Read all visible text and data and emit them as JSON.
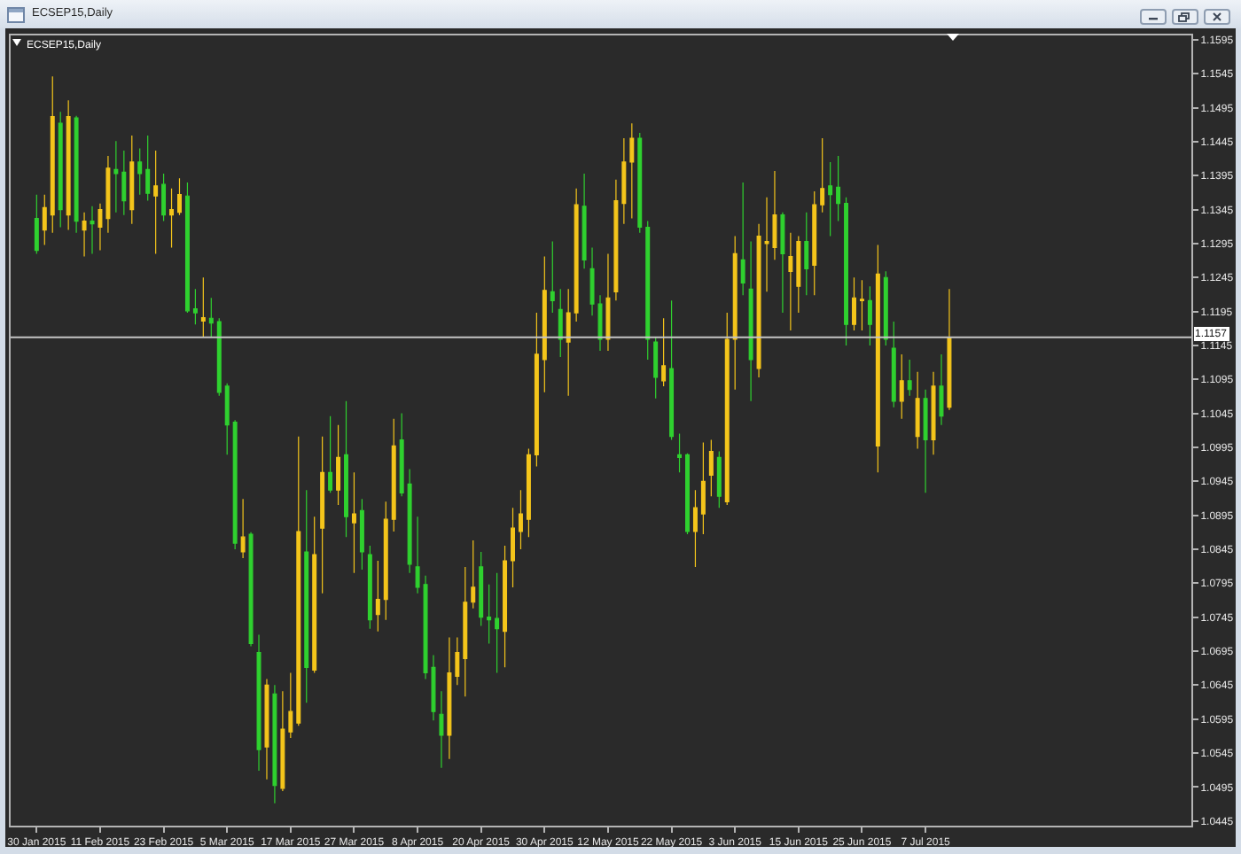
{
  "chart_data": {
    "type": "candlestick",
    "title": "ECSEP15,Daily",
    "annotations": [
      "ECSEP15,Daily"
    ],
    "categories": [
      "30 Jan 2015",
      null,
      null,
      null,
      null,
      null,
      null,
      null,
      "11 Feb 2015",
      null,
      null,
      null,
      null,
      null,
      null,
      null,
      "23 Feb 2015",
      null,
      null,
      null,
      null,
      null,
      null,
      null,
      "5 Mar 2015",
      null,
      null,
      null,
      null,
      null,
      null,
      null,
      "17 Mar 2015",
      null,
      null,
      null,
      null,
      null,
      null,
      null,
      "27 Mar 2015",
      null,
      null,
      null,
      null,
      null,
      null,
      null,
      "8 Apr 2015",
      null,
      null,
      null,
      null,
      null,
      null,
      null,
      "20 Apr 2015",
      null,
      null,
      null,
      null,
      null,
      null,
      null,
      "30 Apr 2015",
      null,
      null,
      null,
      null,
      null,
      null,
      null,
      "12 May 2015",
      null,
      null,
      null,
      null,
      null,
      null,
      null,
      "22 May 2015",
      null,
      null,
      null,
      null,
      null,
      null,
      null,
      "3 Jun 2015",
      null,
      null,
      null,
      null,
      null,
      null,
      null,
      "15 Jun 2015",
      null,
      null,
      null,
      null,
      null,
      null,
      null,
      "25 Jun 2015",
      null,
      null,
      null,
      null,
      null,
      null,
      null,
      "7 Jul 2015",
      null,
      null,
      null,
      null,
      null,
      null,
      null,
      null,
      null,
      null,
      null,
      null,
      null,
      null,
      null,
      null,
      null,
      null,
      null,
      null,
      null,
      null,
      null,
      null,
      null,
      null,
      null,
      null,
      null,
      null,
      null,
      null,
      null
    ],
    "ohlc": [
      [
        1.1332,
        1.1367,
        1.128,
        1.1285
      ],
      [
        1.1315,
        1.1367,
        1.1293,
        1.1348
      ],
      [
        1.1337,
        1.1541,
        1.1311,
        1.1482
      ],
      [
        1.1472,
        1.1489,
        1.1319,
        1.1345
      ],
      [
        1.1337,
        1.1506,
        1.1315,
        1.1482
      ],
      [
        1.148,
        1.1483,
        1.1311,
        1.1328
      ],
      [
        1.1315,
        1.1341,
        1.1276,
        1.1328
      ],
      [
        1.1328,
        1.135,
        1.128,
        1.1324
      ],
      [
        1.1319,
        1.1354,
        1.1285,
        1.1345
      ],
      [
        1.1332,
        1.1424,
        1.1311,
        1.1406
      ],
      [
        1.1404,
        1.1446,
        1.1341,
        1.1398
      ],
      [
        1.14,
        1.1432,
        1.1337,
        1.1358
      ],
      [
        1.1345,
        1.1454,
        1.1324,
        1.1415
      ],
      [
        1.1415,
        1.1435,
        1.1367,
        1.1398
      ],
      [
        1.1404,
        1.1454,
        1.1358,
        1.1369
      ],
      [
        1.1365,
        1.1432,
        1.128,
        1.138
      ],
      [
        1.1382,
        1.1398,
        1.1328,
        1.1337
      ],
      [
        1.1337,
        1.1376,
        1.1289,
        1.1345
      ],
      [
        1.1341,
        1.1391,
        1.1337,
        1.1367
      ],
      [
        1.1365,
        1.1385,
        1.1193,
        1.1196
      ],
      [
        1.1199,
        1.1228,
        1.1176,
        1.1193
      ],
      [
        1.1181,
        1.1245,
        1.1158,
        1.1186
      ],
      [
        1.1185,
        1.1215,
        1.1158,
        1.1178
      ],
      [
        1.118,
        1.1185,
        1.1071,
        1.1076
      ],
      [
        1.1085,
        1.1089,
        1.0984,
        1.1028
      ],
      [
        1.1032,
        1.1035,
        1.0845,
        1.0854
      ],
      [
        1.0841,
        1.0919,
        1.0832,
        1.0863
      ],
      [
        1.0867,
        1.087,
        1.0702,
        1.0706
      ],
      [
        1.0693,
        1.0719,
        1.0519,
        1.055
      ],
      [
        1.0554,
        1.0654,
        1.0506,
        1.0645
      ],
      [
        1.0632,
        1.0645,
        1.0471,
        1.0497
      ],
      [
        1.0493,
        1.0636,
        1.0489,
        1.058
      ],
      [
        1.0576,
        1.0663,
        1.0567,
        1.0606
      ],
      [
        1.0589,
        1.1011,
        1.0585,
        1.0871
      ],
      [
        1.0841,
        1.0932,
        1.0619,
        1.0671
      ],
      [
        1.0667,
        1.0893,
        1.0663,
        1.0837
      ],
      [
        1.0876,
        1.1011,
        1.078,
        1.0958
      ],
      [
        1.0958,
        1.1041,
        1.0928,
        1.0932
      ],
      [
        1.0932,
        1.1028,
        1.091,
        1.098
      ],
      [
        1.0984,
        1.1063,
        1.0863,
        1.0893
      ],
      [
        1.0884,
        1.0958,
        1.081,
        1.0897
      ],
      [
        1.0902,
        1.0919,
        1.0815,
        1.0841
      ],
      [
        1.0837,
        1.085,
        1.0728,
        1.0741
      ],
      [
        1.0749,
        1.0828,
        1.0724,
        1.0771
      ],
      [
        1.0771,
        1.0915,
        1.0741,
        1.0889
      ],
      [
        1.0889,
        1.1037,
        1.0871,
        1.0997
      ],
      [
        1.1006,
        1.1045,
        1.0923,
        1.0928
      ],
      [
        1.0941,
        1.0963,
        1.081,
        1.0823
      ],
      [
        1.0819,
        1.0893,
        1.078,
        1.0789
      ],
      [
        1.0793,
        1.0806,
        1.0654,
        1.0663
      ],
      [
        1.0671,
        1.0689,
        1.0593,
        1.0606
      ],
      [
        1.0602,
        1.0636,
        1.0523,
        1.0571
      ],
      [
        1.0571,
        1.0715,
        1.0536,
        1.0663
      ],
      [
        1.0658,
        1.0715,
        1.0645,
        1.0693
      ],
      [
        1.0684,
        1.0819,
        1.0628,
        1.0767
      ],
      [
        1.0767,
        1.0858,
        1.0758,
        1.0789
      ],
      [
        1.0819,
        1.0841,
        1.0732,
        1.0745
      ],
      [
        1.0745,
        1.0793,
        1.0706,
        1.0741
      ],
      [
        1.0743,
        1.081,
        1.0663,
        1.0728
      ],
      [
        1.0724,
        1.085,
        1.0671,
        1.0828
      ],
      [
        1.0828,
        1.0906,
        1.0789,
        1.0876
      ],
      [
        1.0871,
        1.0932,
        1.0845,
        1.0897
      ],
      [
        1.0889,
        1.0993,
        1.0863,
        1.0984
      ],
      [
        1.0984,
        1.1193,
        1.0967,
        1.1132
      ],
      [
        1.1124,
        1.1276,
        1.1076,
        1.1226
      ],
      [
        1.1224,
        1.1298,
        1.1193,
        1.1211
      ],
      [
        1.1198,
        1.1228,
        1.1128,
        1.1154
      ],
      [
        1.115,
        1.1228,
        1.1071,
        1.1193
      ],
      [
        1.1193,
        1.1376,
        1.118,
        1.1352
      ],
      [
        1.135,
        1.1398,
        1.1258,
        1.1271
      ],
      [
        1.1258,
        1.1289,
        1.1189,
        1.1206
      ],
      [
        1.1206,
        1.1219,
        1.1137,
        1.1154
      ],
      [
        1.1154,
        1.128,
        1.1137,
        1.1215
      ],
      [
        1.1224,
        1.1389,
        1.1211,
        1.1358
      ],
      [
        1.1354,
        1.145,
        1.1324,
        1.1415
      ],
      [
        1.1415,
        1.1472,
        1.1332,
        1.145
      ],
      [
        1.145,
        1.1458,
        1.1311,
        1.1319
      ],
      [
        1.1319,
        1.1328,
        1.1124,
        1.1154
      ],
      [
        1.115,
        1.1158,
        1.1067,
        1.1098
      ],
      [
        1.1093,
        1.1185,
        1.1085,
        1.1115
      ],
      [
        1.1111,
        1.1211,
        1.1006,
        1.1011
      ],
      [
        1.0984,
        1.1015,
        1.0958,
        1.098
      ],
      [
        1.0984,
        1.0986,
        1.0867,
        1.0871
      ],
      [
        1.0871,
        1.0932,
        1.0819,
        1.0906
      ],
      [
        1.0897,
        1.1002,
        1.0867,
        1.0945
      ],
      [
        1.0954,
        1.1006,
        1.0923,
        1.0989
      ],
      [
        1.098,
        1.0989,
        1.0906,
        1.0923
      ],
      [
        1.0915,
        1.1193,
        1.091,
        1.1154
      ],
      [
        1.1154,
        1.1306,
        1.108,
        1.128
      ],
      [
        1.1271,
        1.1385,
        1.1219,
        1.1237
      ],
      [
        1.1228,
        1.1298,
        1.1063,
        1.1124
      ],
      [
        1.1111,
        1.1324,
        1.1098,
        1.1306
      ],
      [
        1.1295,
        1.1363,
        1.1224,
        1.1298
      ],
      [
        1.1289,
        1.1402,
        1.1271,
        1.1337
      ],
      [
        1.1337,
        1.1341,
        1.1193,
        1.128
      ],
      [
        1.1254,
        1.1311,
        1.1167,
        1.1276
      ],
      [
        1.1232,
        1.1306,
        1.1193,
        1.1298
      ],
      [
        1.1298,
        1.1341,
        1.1219,
        1.1258
      ],
      [
        1.1263,
        1.1372,
        1.1219,
        1.1352
      ],
      [
        1.1352,
        1.145,
        1.1341,
        1.1376
      ],
      [
        1.138,
        1.1415,
        1.1306,
        1.1367
      ],
      [
        1.1378,
        1.1424,
        1.1328,
        1.1354
      ],
      [
        1.1354,
        1.1363,
        1.1145,
        1.1176
      ],
      [
        1.1176,
        1.1245,
        1.1167,
        1.1215
      ],
      [
        1.1211,
        1.1241,
        1.1167,
        1.1213
      ],
      [
        1.1211,
        1.1232,
        1.1145,
        1.1176
      ],
      [
        1.0997,
        1.1293,
        1.0958,
        1.125
      ],
      [
        1.1245,
        1.1254,
        1.1145,
        1.1154
      ],
      [
        1.1141,
        1.118,
        1.1054,
        1.1063
      ],
      [
        1.1063,
        1.1132,
        1.1037,
        1.1093
      ],
      [
        1.1093,
        1.1124,
        1.1071,
        1.108
      ],
      [
        1.1011,
        1.1106,
        1.0993,
        1.1067
      ],
      [
        1.1067,
        1.108,
        1.0928,
        1.1006
      ],
      [
        1.1006,
        1.1106,
        1.0984,
        1.1085
      ],
      [
        1.1085,
        1.1132,
        1.1028,
        1.1041
      ],
      [
        1.1054,
        1.1228,
        1.105,
        1.1157
      ],
      null,
      null,
      null,
      null,
      null,
      null,
      null,
      null,
      null,
      null,
      null,
      null,
      null,
      null,
      null,
      null,
      null,
      null,
      null,
      null,
      null,
      null,
      null,
      null,
      null,
      null,
      null,
      null,
      null,
      null
    ],
    "colors": [
      "#2fd12f",
      "#f4c51b",
      "#f4c51b",
      "#2fd12f",
      "#f4c51b",
      "#2fd12f",
      "#f4c51b",
      "#2fd12f",
      "#f4c51b",
      "#f4c51b",
      "#2fd12f",
      "#2fd12f",
      "#f4c51b",
      "#2fd12f",
      "#2fd12f",
      "#f4c51b",
      "#2fd12f",
      "#f4c51b",
      "#f4c51b",
      "#2fd12f",
      "#2fd12f",
      "#f4c51b",
      "#2fd12f",
      "#2fd12f",
      "#2fd12f",
      "#2fd12f",
      "#f4c51b",
      "#2fd12f",
      "#2fd12f",
      "#f4c51b",
      "#2fd12f",
      "#f4c51b",
      "#f4c51b",
      "#f4c51b",
      "#2fd12f",
      "#f4c51b",
      "#f4c51b",
      "#2fd12f",
      "#f4c51b",
      "#2fd12f",
      "#f4c51b",
      "#2fd12f",
      "#2fd12f",
      "#f4c51b",
      "#f4c51b",
      "#f4c51b",
      "#2fd12f",
      "#2fd12f",
      "#2fd12f",
      "#2fd12f",
      "#2fd12f",
      "#2fd12f",
      "#f4c51b",
      "#f4c51b",
      "#f4c51b",
      "#f4c51b",
      "#2fd12f",
      "#2fd12f",
      "#2fd12f",
      "#f4c51b",
      "#f4c51b",
      "#f4c51b",
      "#f4c51b",
      "#f4c51b",
      "#f4c51b",
      "#2fd12f",
      "#2fd12f",
      "#f4c51b",
      "#f4c51b",
      "#2fd12f",
      "#2fd12f",
      "#2fd12f",
      "#f4c51b",
      "#f4c51b",
      "#f4c51b",
      "#f4c51b",
      "#2fd12f",
      "#2fd12f",
      "#2fd12f",
      "#f4c51b",
      "#2fd12f",
      "#2fd12f",
      "#2fd12f",
      "#f4c51b",
      "#f4c51b",
      "#f4c51b",
      "#2fd12f",
      "#f4c51b",
      "#f4c51b",
      "#2fd12f",
      "#2fd12f",
      "#f4c51b",
      "#f4c51b",
      "#f4c51b",
      "#2fd12f",
      "#f4c51b",
      "#f4c51b",
      "#2fd12f",
      "#f4c51b",
      "#f4c51b",
      "#2fd12f",
      "#2fd12f",
      "#2fd12f",
      "#f4c51b",
      "#f4c51b",
      "#2fd12f",
      "#f4c51b",
      "#2fd12f",
      "#2fd12f",
      "#f4c51b",
      "#2fd12f",
      "#f4c51b",
      "#2fd12f",
      "#f4c51b",
      "#2fd12f",
      "#f4c51b",
      null,
      null,
      null,
      null,
      null,
      null,
      null,
      null,
      null,
      null,
      null,
      null,
      null,
      null,
      null,
      null,
      null,
      null,
      null,
      null,
      null,
      null,
      null,
      null,
      null,
      null,
      null,
      null,
      null,
      null
    ],
    "ylim": [
      1.0438,
      1.1604
    ],
    "yticks": [
      1.0445,
      1.0495,
      1.0545,
      1.0595,
      1.0645,
      1.0695,
      1.0745,
      1.0795,
      1.0845,
      1.0895,
      1.0945,
      1.0995,
      1.1045,
      1.1095,
      1.1145,
      1.1195,
      1.1245,
      1.1295,
      1.1345,
      1.1395,
      1.1445,
      1.1495,
      1.1545,
      1.1595
    ],
    "ref_lines": [
      {
        "axis": "y",
        "value": 1.1157,
        "label": "1.1157",
        "color": "#c4c4c4"
      }
    ]
  }
}
